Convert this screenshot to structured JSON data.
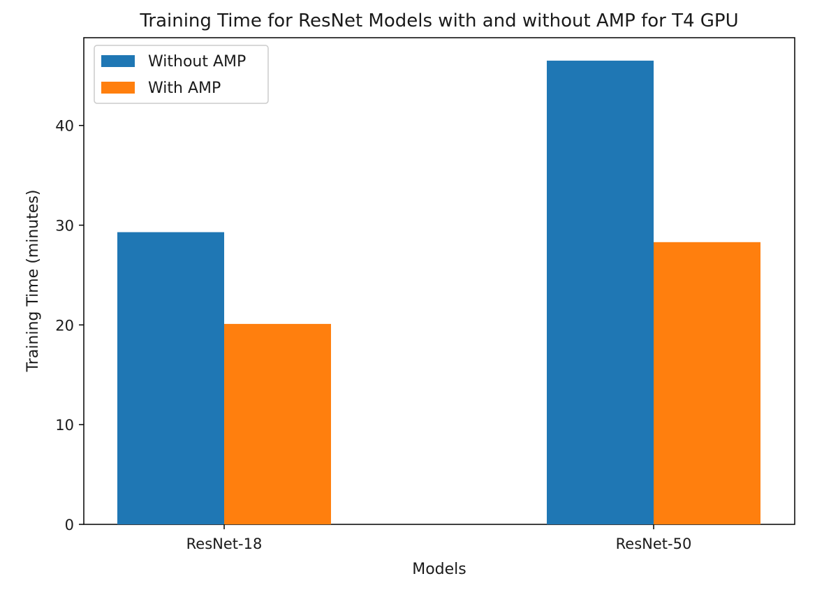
{
  "chart_data": {
    "type": "bar",
    "title": "Training Time for ResNet Models with and without AMP for T4 GPU",
    "xlabel": "Models",
    "ylabel": "Training Time (minutes)",
    "categories": [
      "ResNet-18",
      "ResNet-50"
    ],
    "series": [
      {
        "name": "Without AMP",
        "values": [
          29.3,
          46.5
        ],
        "color": "#1f77b4"
      },
      {
        "name": "With AMP",
        "values": [
          20.1,
          28.3
        ],
        "color": "#ff7f0e"
      }
    ],
    "ylim": [
      0,
      48.8
    ],
    "yticks": [
      0,
      10,
      20,
      30,
      40
    ],
    "legend_position": "upper-left",
    "grid": false
  }
}
